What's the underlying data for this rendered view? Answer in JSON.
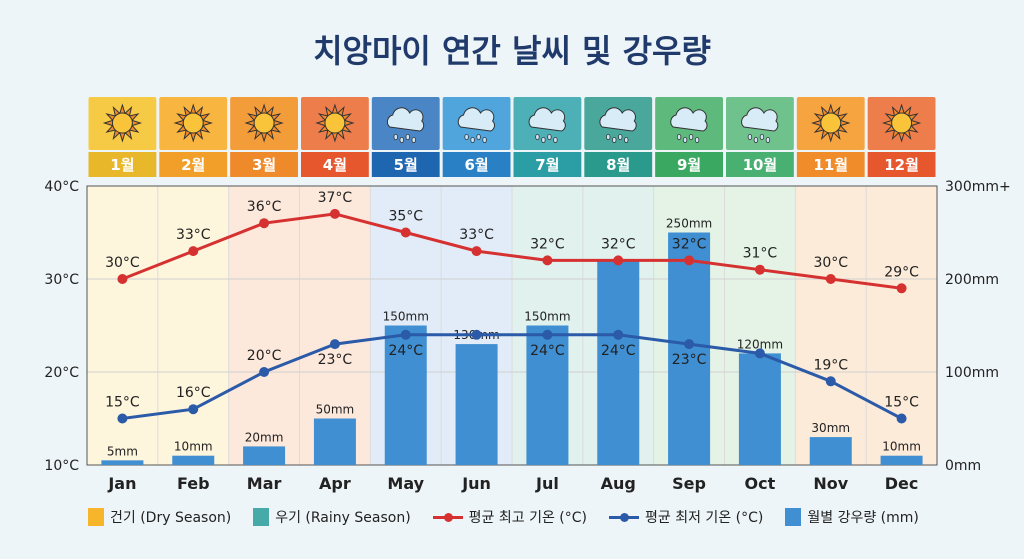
{
  "title": "치앙마이 연간 날씨 및 강우량",
  "chart_data": {
    "type": "bar+line",
    "title": "치앙마이 연간 날씨 및 강우량",
    "categories": [
      "Jan",
      "Feb",
      "Mar",
      "Apr",
      "May",
      "Jun",
      "Jul",
      "Aug",
      "Sep",
      "Oct",
      "Nov",
      "Dec"
    ],
    "month_labels_kr": [
      "1월",
      "2월",
      "3월",
      "4월",
      "5월",
      "6월",
      "7월",
      "8월",
      "9월",
      "10월",
      "11월",
      "12월"
    ],
    "month_icons": [
      "sun-icon",
      "sun-icon",
      "sun-icon",
      "sun-icon",
      "rain-cloud-icon",
      "rain-cloud-icon",
      "rain-cloud-icon",
      "rain-cloud-icon",
      "rain-cloud-icon",
      "rain-cloud-icon",
      "sun-icon",
      "sun-icon"
    ],
    "season": [
      "dry",
      "dry",
      "dry",
      "dry",
      "rainy",
      "rainy",
      "rainy",
      "rainy",
      "rainy",
      "rainy",
      "dry",
      "dry"
    ],
    "left_axis": {
      "ylim": [
        10,
        40
      ],
      "ticks": [
        "10°C",
        "20°C",
        "30°C",
        "40°C"
      ]
    },
    "right_axis": {
      "ylim": [
        0,
        300
      ],
      "ticks": [
        "0mm",
        "100mm",
        "200mm",
        "300mm+"
      ]
    },
    "series": [
      {
        "name": "평균 최고 기온 (°C)",
        "type": "line",
        "axis": "left",
        "color": "#d63131",
        "values": [
          30,
          33,
          36,
          37,
          35,
          33,
          32,
          32,
          32,
          31,
          30,
          29
        ],
        "labels": [
          "30°C",
          "33°C",
          "36°C",
          "37°C",
          "35°C",
          "33°C",
          "32°C",
          "32°C",
          "32°C",
          "31°C",
          "30°C",
          "29°C"
        ]
      },
      {
        "name": "평균 최저 기온 (°C)",
        "type": "line",
        "axis": "left",
        "color": "#2b5aa8",
        "values": [
          15,
          16,
          20,
          23,
          24,
          24,
          24,
          24,
          23,
          22,
          19,
          15
        ],
        "labels": [
          "15°C",
          "16°C",
          "20°C",
          "23°C",
          "24°C",
          "",
          "24°C",
          "24°C",
          "23°C",
          "",
          "19°C",
          "15°C"
        ]
      },
      {
        "name": "월별 강우량 (mm)",
        "type": "bar",
        "axis": "right",
        "color": "#3f8fd2",
        "values": [
          5,
          10,
          20,
          50,
          150,
          130,
          150,
          220,
          250,
          120,
          30,
          10
        ],
        "labels": [
          "5mm",
          "10mm",
          "20mm",
          "50mm",
          "150mm",
          "130mm",
          "150mm",
          "",
          "250mm",
          "120mm",
          "30mm",
          "10mm"
        ]
      }
    ],
    "legend": [
      {
        "label": "건기 (Dry Season)",
        "color": "#f7b52c"
      },
      {
        "label": "우기 (Rainy Season)",
        "color": "#45aaa8"
      },
      {
        "label": "평균 최고 기온 (°C)",
        "color": "#d63131"
      },
      {
        "label": "평균 최저 기온 (°C)",
        "color": "#2b5aa8"
      },
      {
        "label": "월별 강우량 (mm)",
        "color": "#3f8fd2"
      }
    ],
    "legend_position": "bottom",
    "grid": true
  },
  "colors": {
    "tile": [
      "#f7ca45",
      "#f8b540",
      "#f39c3a",
      "#ee7d4c",
      "#4a86c6",
      "#4fa5dc",
      "#4db0b6",
      "#4aa79c",
      "#5db97c",
      "#70c28c",
      "#f5a440",
      "#ee7d4c"
    ],
    "tile_label": [
      "#e8b82a",
      "#f29f2a",
      "#ee8a2a",
      "#e6572e",
      "#1f66b0",
      "#2a80c4",
      "#2a9ea4",
      "#2a9a8c",
      "#3aa860",
      "#48b070",
      "#f08c2a",
      "#e6572e"
    ],
    "column_bg": [
      "#fdf5dc",
      "#fdf5dc",
      "#fde9dc",
      "#fde9dc",
      "#e2ecf8",
      "#e2ecf8",
      "#e0f1ee",
      "#e0f1ee",
      "#e4f3e6",
      "#e4f3e6",
      "#fdebd9",
      "#fdebd9"
    ]
  }
}
